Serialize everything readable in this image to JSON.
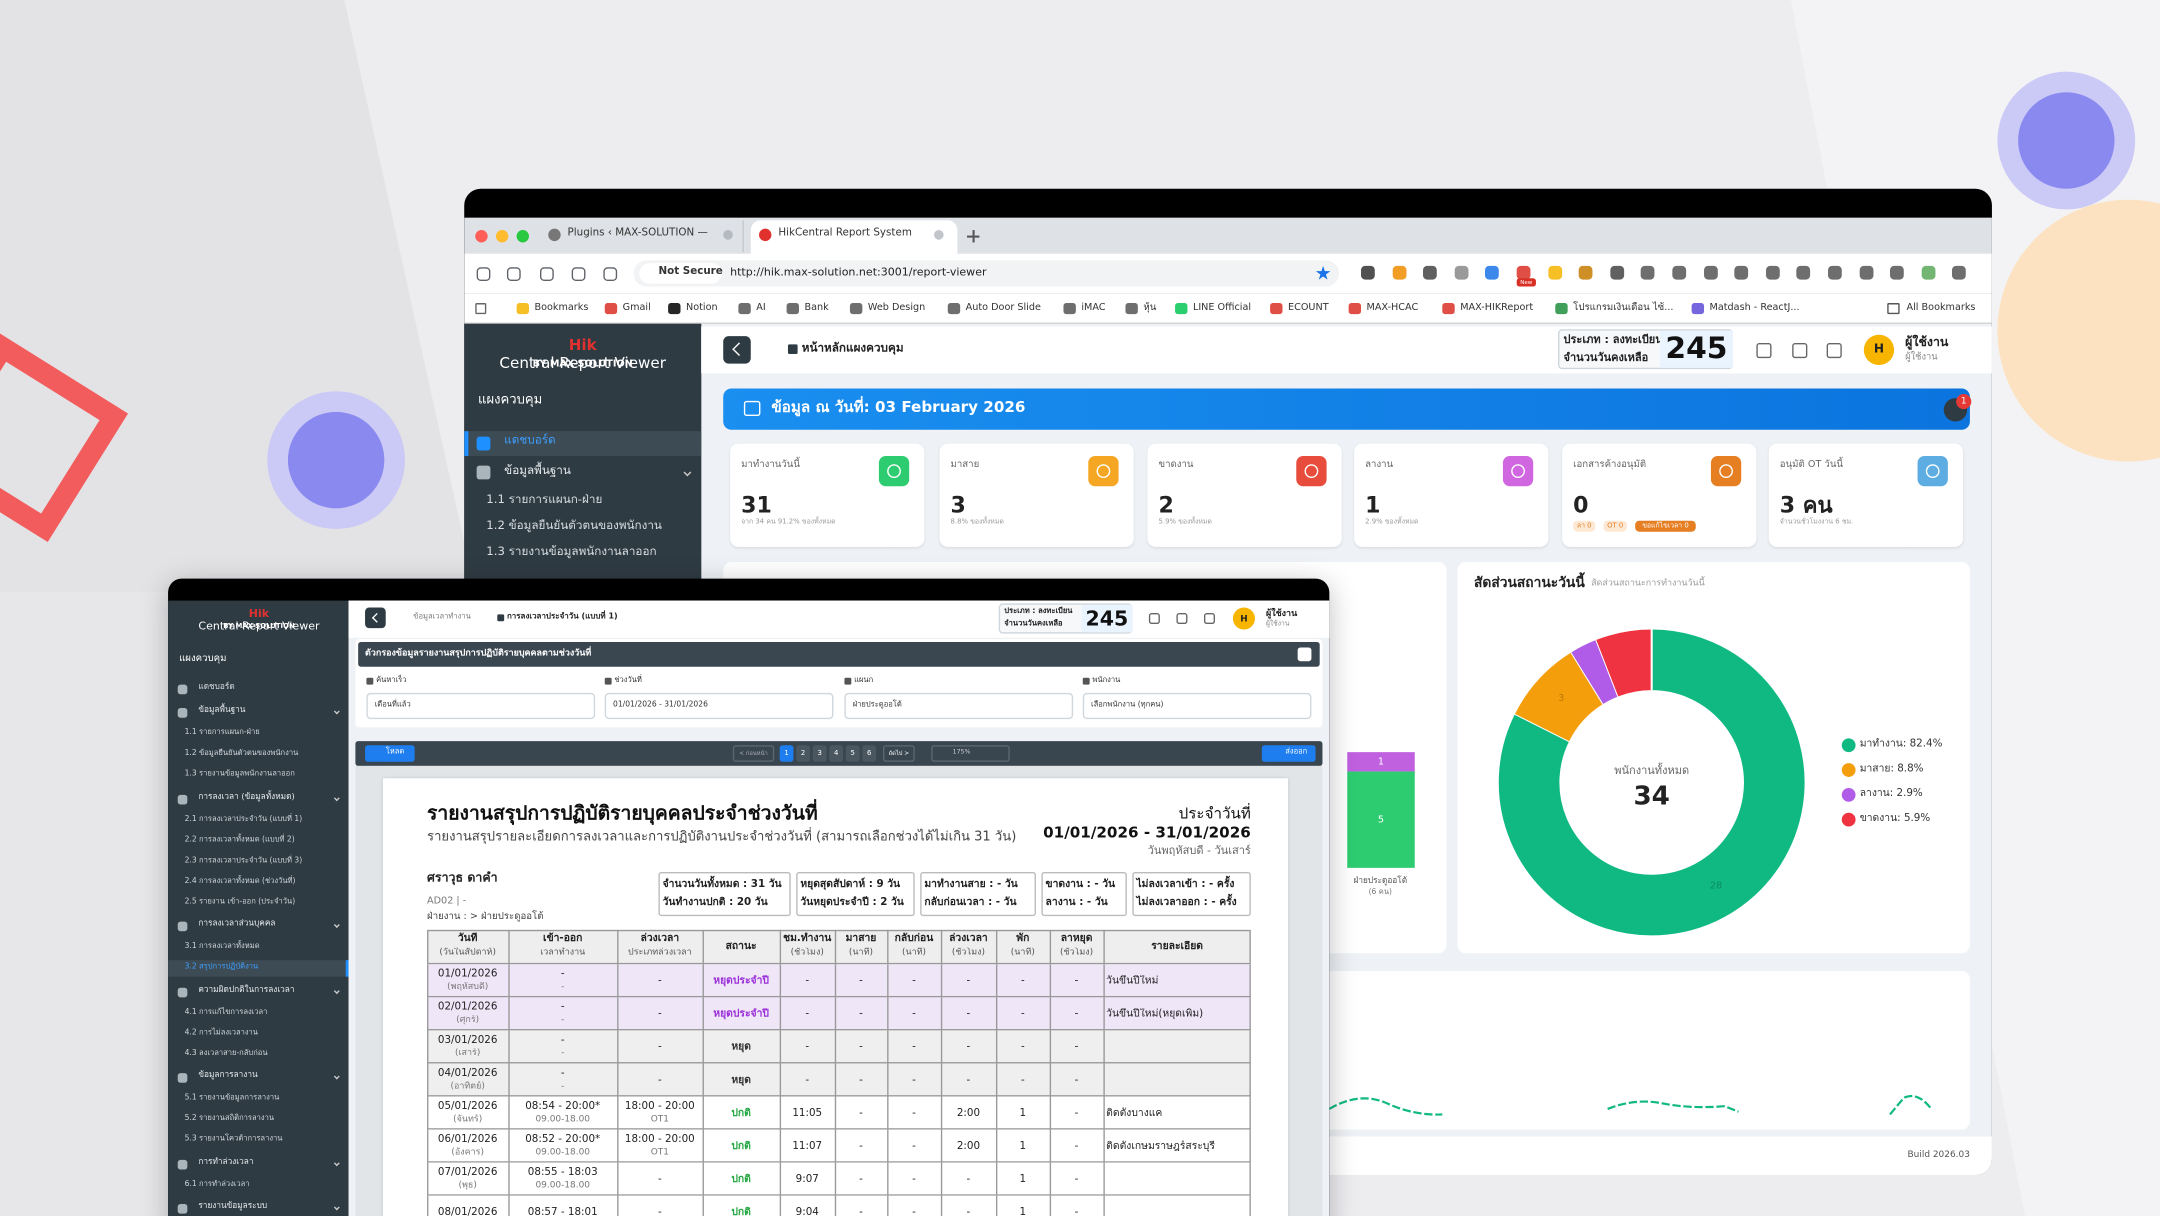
{
  "browser": {
    "tabs": [
      "Plugins ‹ MAX-SOLUTION —",
      "HikCentral Report System"
    ],
    "security": "Not Secure",
    "url": "http://hik.max-solution.net:3001/report-viewer",
    "new_badge": "New",
    "bookmarks": [
      "Bookmarks",
      "Gmail",
      "Notion",
      "AI",
      "Bank",
      "Web Design",
      "Auto Door Slide",
      "iMAC",
      "หุ้น",
      "LINE Official",
      "ECOUNT",
      "MAX-HCAC",
      "MAX-HIKReport",
      "โปรแกรมเงินเดือน ไซ้...",
      "Matdash - ReactJ..."
    ],
    "all_bookmarks": "All Bookmarks"
  },
  "brand": {
    "hik": "Hik",
    "name": "Central Report Viewer",
    "sub": "BY MAX-SOLUTION"
  },
  "license": {
    "type": "ประเภท : ลงทะเบียน",
    "days_label": "จำนวนวันคงเหลือ",
    "days": "245"
  },
  "user": {
    "avatar": "H",
    "name": "ผู้ใช้งาน",
    "role": "ผู้ใช้งาน"
  },
  "dashboard": {
    "sidebar_heading": "แผงควบคุม",
    "sidebar": [
      "แดชบอร์ด",
      "ข้อมูลพื้นฐาน",
      "1.1  รายการแผนก-ฝ่าย",
      "1.2  ข้อมูลยืนยันตัวตนของพนักงาน",
      "1.3  รายงานข้อมูลพนักงานลาออก"
    ],
    "page_tab": "หน้าหลักแผงควบคุม",
    "banner": "ข้อมูล ณ วันที่: 03 February 2026",
    "notification_count": "1",
    "cards": [
      {
        "title": "มาทำงานวันนี้",
        "value": "31",
        "note": "จาก 34 คน 91.2% ของทั้งหมด",
        "color": "#2ecc71"
      },
      {
        "title": "มาสาย",
        "value": "3",
        "note": "8.8% ของทั้งหมด",
        "color": "#f5a623"
      },
      {
        "title": "ขาดงาน",
        "value": "2",
        "note": "5.9% ของทั้งหมด",
        "color": "#e74c3c"
      },
      {
        "title": "ลางาน",
        "value": "1",
        "note": "2.9% ของทั้งหมด",
        "color": "#d066e0"
      },
      {
        "title": "เอกสารค้างอนุมัติ",
        "value": "0",
        "badges": [
          "ลา 0",
          "OT 0",
          "ขอแก้ไขเวลา 0"
        ],
        "color": "#e67e22"
      },
      {
        "title": "อนุมัติ OT วันนี้",
        "value": "3 คน",
        "note": "จำนวนชั่วโมงงาน 6 ชม.",
        "color": "#5dade2"
      }
    ],
    "dept_chart": {
      "bars": [
        {
          "name": "ฝ่ายประดูออโต้",
          "total_label": "(6 คน)",
          "segments": [
            {
              "value": 5,
              "color": "#2ecc71"
            },
            {
              "value": 1,
              "color": "#c061e0"
            }
          ]
        }
      ]
    },
    "donut": {
      "title": "สัดส่วนสถานะวันนี้",
      "subtitle": "สัดส่วนสถานะการทำงานวันนี้",
      "center_label": "พนักงานทั้งหมด",
      "center_value": "34",
      "series": [
        {
          "name": "มาทำงาน",
          "value": 82.4,
          "value_label": "มาทำงาน: 82.4%",
          "color": "#10b981",
          "segment_label": "28"
        },
        {
          "name": "มาสาย",
          "value": 8.8,
          "value_label": "มาสาย: 8.8%",
          "color": "#f59e0b",
          "segment_label": "3"
        },
        {
          "name": "ลางาน",
          "value": 2.9,
          "value_label": "ลางาน: 2.9%",
          "color": "#b05ce8"
        },
        {
          "name": "ขาดงาน",
          "value": 5.9,
          "value_label": "ขาดงาน: 5.9%",
          "color": "#ef3340"
        }
      ]
    },
    "build": "Build 2026.03"
  },
  "report_viewer": {
    "sidebar": {
      "heading": "แผงควบคุม",
      "dashboard": "แดชบอร์ด",
      "groups": [
        {
          "title": "ข้อมูลพื้นฐาน",
          "items": [
            "1.1  รายการแผนก-ฝ่าย",
            "1.2  ข้อมูลยืนยันตัวตนของพนักงาน",
            "1.3  รายงานข้อมูลพนักงานลาออก"
          ]
        },
        {
          "title": "การลงเวลา (ข้อมูลทั้งหมด)",
          "items": [
            "2.1  การลงเวลาประจำวัน (แบบที่ 1)",
            "2.2  การลงเวลาทั้งหมด (แบบที่ 2)",
            "2.3  การลงเวลาประจำวัน (แบบที่ 3)",
            "2.4  การลงเวลาทั้งหมด (ช่วงวันที่)",
            "2.5  รายงาน เข้า-ออก (ประจำวัน)"
          ]
        },
        {
          "title": "การลงเวลาส่วนบุคคล",
          "items": [
            "3.1  การลงเวลาทั้งหมด",
            "3.2  สรุปการปฏิบัติงาน"
          ]
        },
        {
          "title": "ความผิดปกติในการลงเวลา",
          "items": [
            "4.1  การแก้ไขการลงเวลา",
            "4.2  การไม่ลงเวลางาน",
            "4.3  ลงเวลาสาย-กลับก่อน"
          ]
        },
        {
          "title": "ข้อมูลการลางาน",
          "items": [
            "5.1  รายงานข้อมูลการลางาน",
            "5.2  รายงานสถิติการลางาน",
            "5.3  รายงานโควต้าการลางาน"
          ]
        },
        {
          "title": "การทำล่วงเวลา",
          "items": [
            "6.1  การทำล่วงเวลา"
          ]
        },
        {
          "title": "รายงานข้อมูลระบบ",
          "items": []
        }
      ]
    },
    "breadcrumb": "ข้อมูลเวลาทำงาน",
    "page_tab": "การลงเวลาประจำวัน (แบบที่ 1)",
    "filter_title": "ตัวกรองข้อมูลรายงานสรุปการปฏิบัติรายบุคคลตามช่วงวันที่",
    "filters": [
      {
        "label": "ค้นหาเร็ว",
        "value": "เดือนที่แล้ว"
      },
      {
        "label": "ช่วงวันที่",
        "value": "01/01/2026 - 31/01/2026"
      },
      {
        "label": "แผนก",
        "value": "ฝ่ายประดูออโต้"
      },
      {
        "label": "พนักงาน",
        "value": "เลือกพนักงาน (ทุกคน)"
      }
    ],
    "toolbar": {
      "load": "โหลด",
      "prev": "< ก่อนหน้า",
      "pages": [
        "1",
        "2",
        "3",
        "4",
        "5",
        "6"
      ],
      "next": "ถัดไป >",
      "zoom": "175%",
      "export": "ส่งออก"
    },
    "report": {
      "title": "รายงานสรุปการปฏิบัติรายบุคคลประจำช่วงวันที่",
      "subtitle": "รายงานสรุปรายละเอียดการลงเวลาและการปฏิบัติงานประจำช่วงวันที่ (สามารถเลือกช่วงได้ไม่เกิน 31 วัน)",
      "period_label": "ประจำวันที่",
      "period": "01/01/2026 - 31/01/2026",
      "period_days": "วันพฤหัสบดี - วันเสาร์",
      "employee": {
        "name": "ศราวุธ ดาคำ",
        "code": "AD02 | -",
        "department": "ฝ่ายงาน : > ฝ่ายประดูออโต้"
      },
      "summary": [
        [
          "จำนวนวันทั้งหมด : 31 วัน",
          "วันทำงานปกติ : 20 วัน"
        ],
        [
          "หยุดสุดสัปดาห์ : 9 วัน",
          "วันหยุดประจำปี : 2 วัน"
        ],
        [
          "มาทำงานสาย : - วัน",
          "กลับก่อนเวลา : - วัน"
        ],
        [
          "ขาดงาน : - วัน",
          "ลางาน : - วัน"
        ],
        [
          "ไม่ลงเวลาเข้า : - ครั้ง",
          "ไม่ลงเวลาออก : - ครั้ง"
        ]
      ],
      "columns": [
        [
          "วันที่",
          "(วันในสัปดาห์)"
        ],
        [
          "เข้า-ออก",
          "เวลาทำงาน"
        ],
        [
          "ล่วงเวลา",
          "ประเภทล่วงเวลา"
        ],
        [
          "สถานะ"
        ],
        [
          "ชม.ทำงาน",
          "(ชั่วโมง)"
        ],
        [
          "มาสาย",
          "(นาที)"
        ],
        [
          "กลับก่อน",
          "(นาที)"
        ],
        [
          "ล่วงเวลา",
          "(ชั่วโมง)"
        ],
        [
          "พัก",
          "(นาที)"
        ],
        [
          "ลาหยุด",
          "(ชั่วโมง)"
        ],
        [
          "รายละเอียด"
        ]
      ],
      "rows": [
        [
          [
            "01/01/2026",
            "(พฤหัสบดี)"
          ],
          [
            "-",
            "-"
          ],
          [
            "-"
          ],
          [
            "หยุดประจำปี"
          ],
          [
            "-"
          ],
          [
            "-"
          ],
          [
            "-"
          ],
          [
            "-"
          ],
          [
            "-"
          ],
          [
            "-"
          ],
          [
            "วันขึ้นปีใหม่"
          ]
        ],
        [
          [
            "02/01/2026",
            "(ศุกร์)"
          ],
          [
            "-",
            "-"
          ],
          [
            "-"
          ],
          [
            "หยุดประจำปี"
          ],
          [
            "-"
          ],
          [
            "-"
          ],
          [
            "-"
          ],
          [
            "-"
          ],
          [
            "-"
          ],
          [
            "-"
          ],
          [
            "วันขึ้นปีใหม่(หยุดเพิ่ม)"
          ]
        ],
        [
          [
            "03/01/2026",
            "(เสาร์)"
          ],
          [
            "-",
            "-"
          ],
          [
            "-"
          ],
          [
            "หยุด"
          ],
          [
            "-"
          ],
          [
            "-"
          ],
          [
            "-"
          ],
          [
            "-"
          ],
          [
            "-"
          ],
          [
            "-"
          ],
          []
        ],
        [
          [
            "04/01/2026",
            "(อาทิตย์)"
          ],
          [
            "-",
            "-"
          ],
          [
            "-"
          ],
          [
            "หยุด"
          ],
          [
            "-"
          ],
          [
            "-"
          ],
          [
            "-"
          ],
          [
            "-"
          ],
          [
            "-"
          ],
          [
            "-"
          ],
          []
        ],
        [
          [
            "05/01/2026",
            "(จันทร์)"
          ],
          [
            "08:54 - 20:00*",
            "09.00-18.00"
          ],
          [
            "18:00 - 20:00",
            "OT1"
          ],
          [
            "ปกติ"
          ],
          [
            "11:05"
          ],
          [
            "-"
          ],
          [
            "-"
          ],
          [
            "2:00"
          ],
          [
            "1"
          ],
          [
            "-"
          ],
          [
            "ติดตั้งบางแค"
          ]
        ],
        [
          [
            "06/01/2026",
            "(อังคาร)"
          ],
          [
            "08:52 - 20:00*",
            "09.00-18.00"
          ],
          [
            "18:00 - 20:00",
            "OT1"
          ],
          [
            "ปกติ"
          ],
          [
            "11:07"
          ],
          [
            "-"
          ],
          [
            "-"
          ],
          [
            "2:00"
          ],
          [
            "1"
          ],
          [
            "-"
          ],
          [
            "ติดตั้งเกษมราษฎร์สระบุรี"
          ]
        ],
        [
          [
            "07/01/2026",
            "(พุธ)"
          ],
          [
            "08:55 - 18:03",
            "09.00-18.00"
          ],
          [
            "-"
          ],
          [
            "ปกติ"
          ],
          [
            "9:07"
          ],
          [
            "-"
          ],
          [
            "-"
          ],
          [
            "-"
          ],
          [
            "1"
          ],
          [
            "-"
          ],
          []
        ],
        [
          [
            "08/01/2026"
          ],
          [
            "08:57 - 18:01"
          ],
          [
            "-"
          ],
          [
            "ปกติ"
          ],
          [
            "9:04"
          ],
          [
            "-"
          ],
          [
            "-"
          ],
          [
            "-"
          ],
          [
            "1"
          ],
          [
            "-"
          ],
          []
        ]
      ]
    }
  }
}
